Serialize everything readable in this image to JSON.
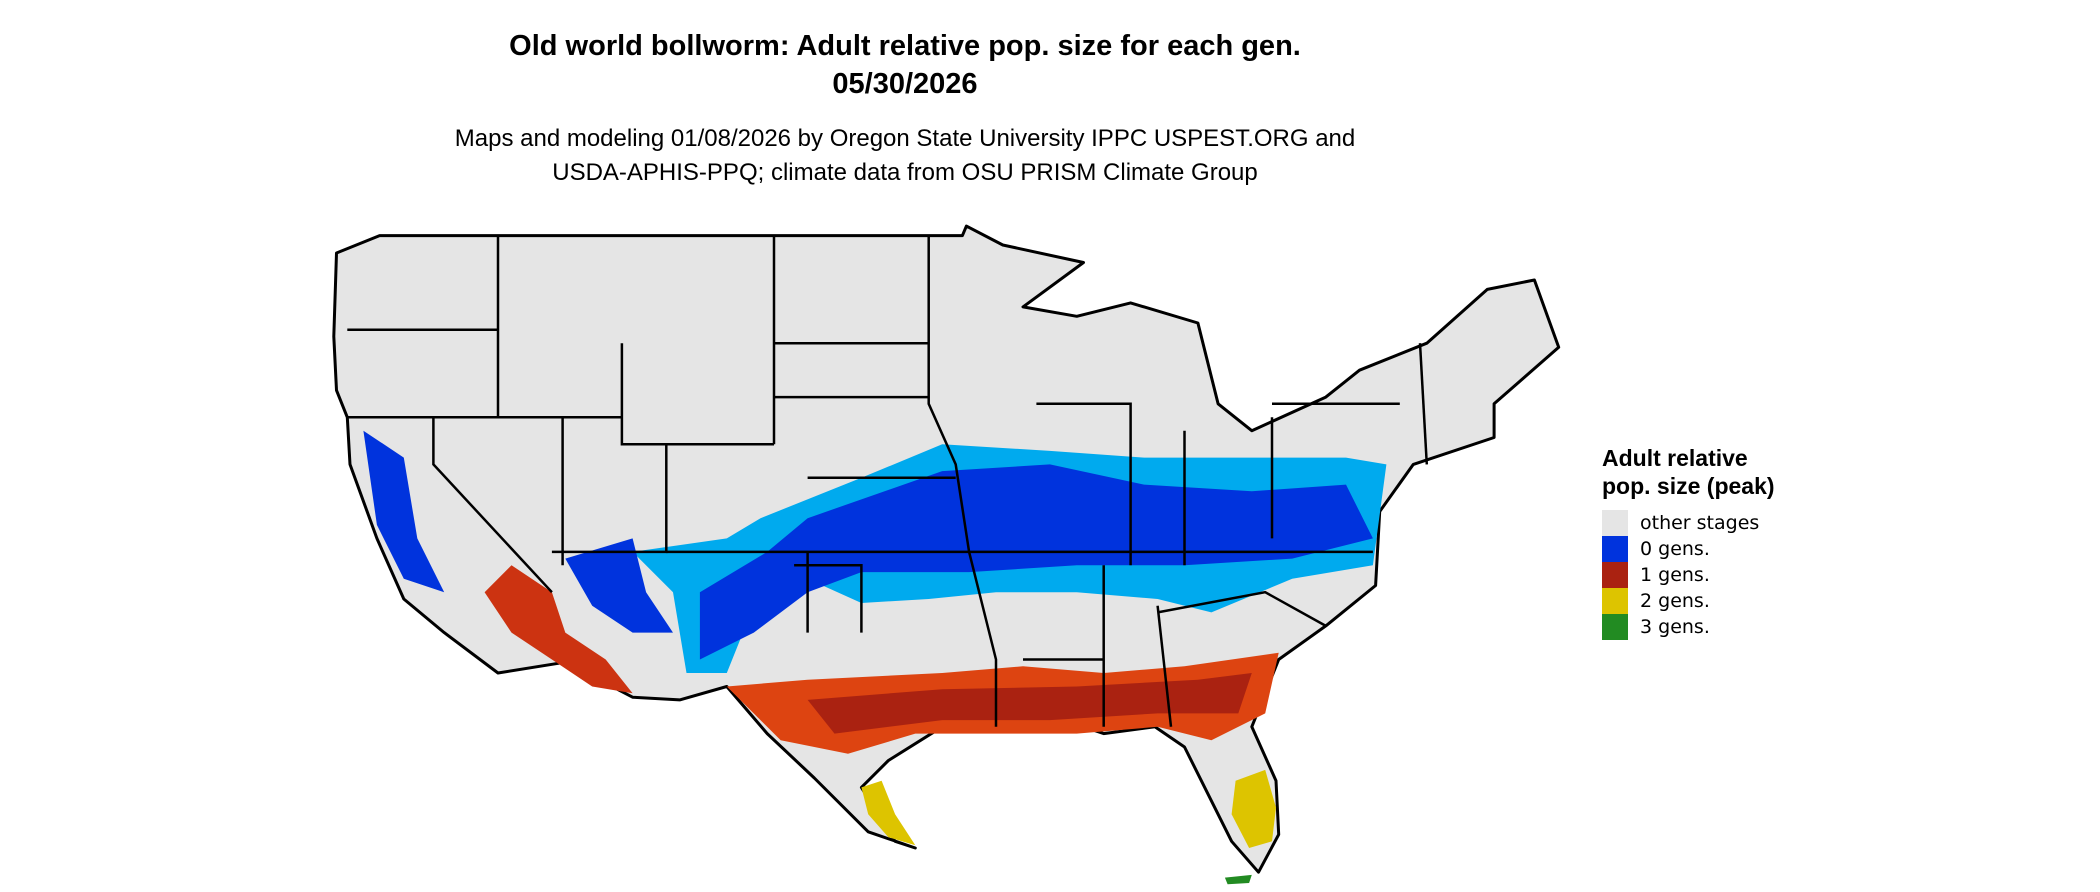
{
  "title": {
    "line1": "Old world bollworm: Adult relative pop. size for each gen.",
    "line2": "05/30/2026"
  },
  "subtitle": {
    "line1": "Maps and modeling 01/08/2026 by Oregon State University IPPC USPEST.ORG and",
    "line2": "USDA-APHIS-PPQ; climate data from OSU PRISM Climate Group"
  },
  "map": {
    "region": "contiguous United States",
    "base_color": "#e5e5e5",
    "border_color": "#000000"
  },
  "legend": {
    "title": "Adult relative pop. size (peak)",
    "items": [
      {
        "label": "other stages",
        "color": "#e5e5e5"
      },
      {
        "label": "0 gens.",
        "color": "#0033dd"
      },
      {
        "label": "1 gens.",
        "color": "#aa2211"
      },
      {
        "label": "2 gens.",
        "color": "#ddc400"
      },
      {
        "label": "3 gens.",
        "color": "#228b22"
      }
    ]
  }
}
